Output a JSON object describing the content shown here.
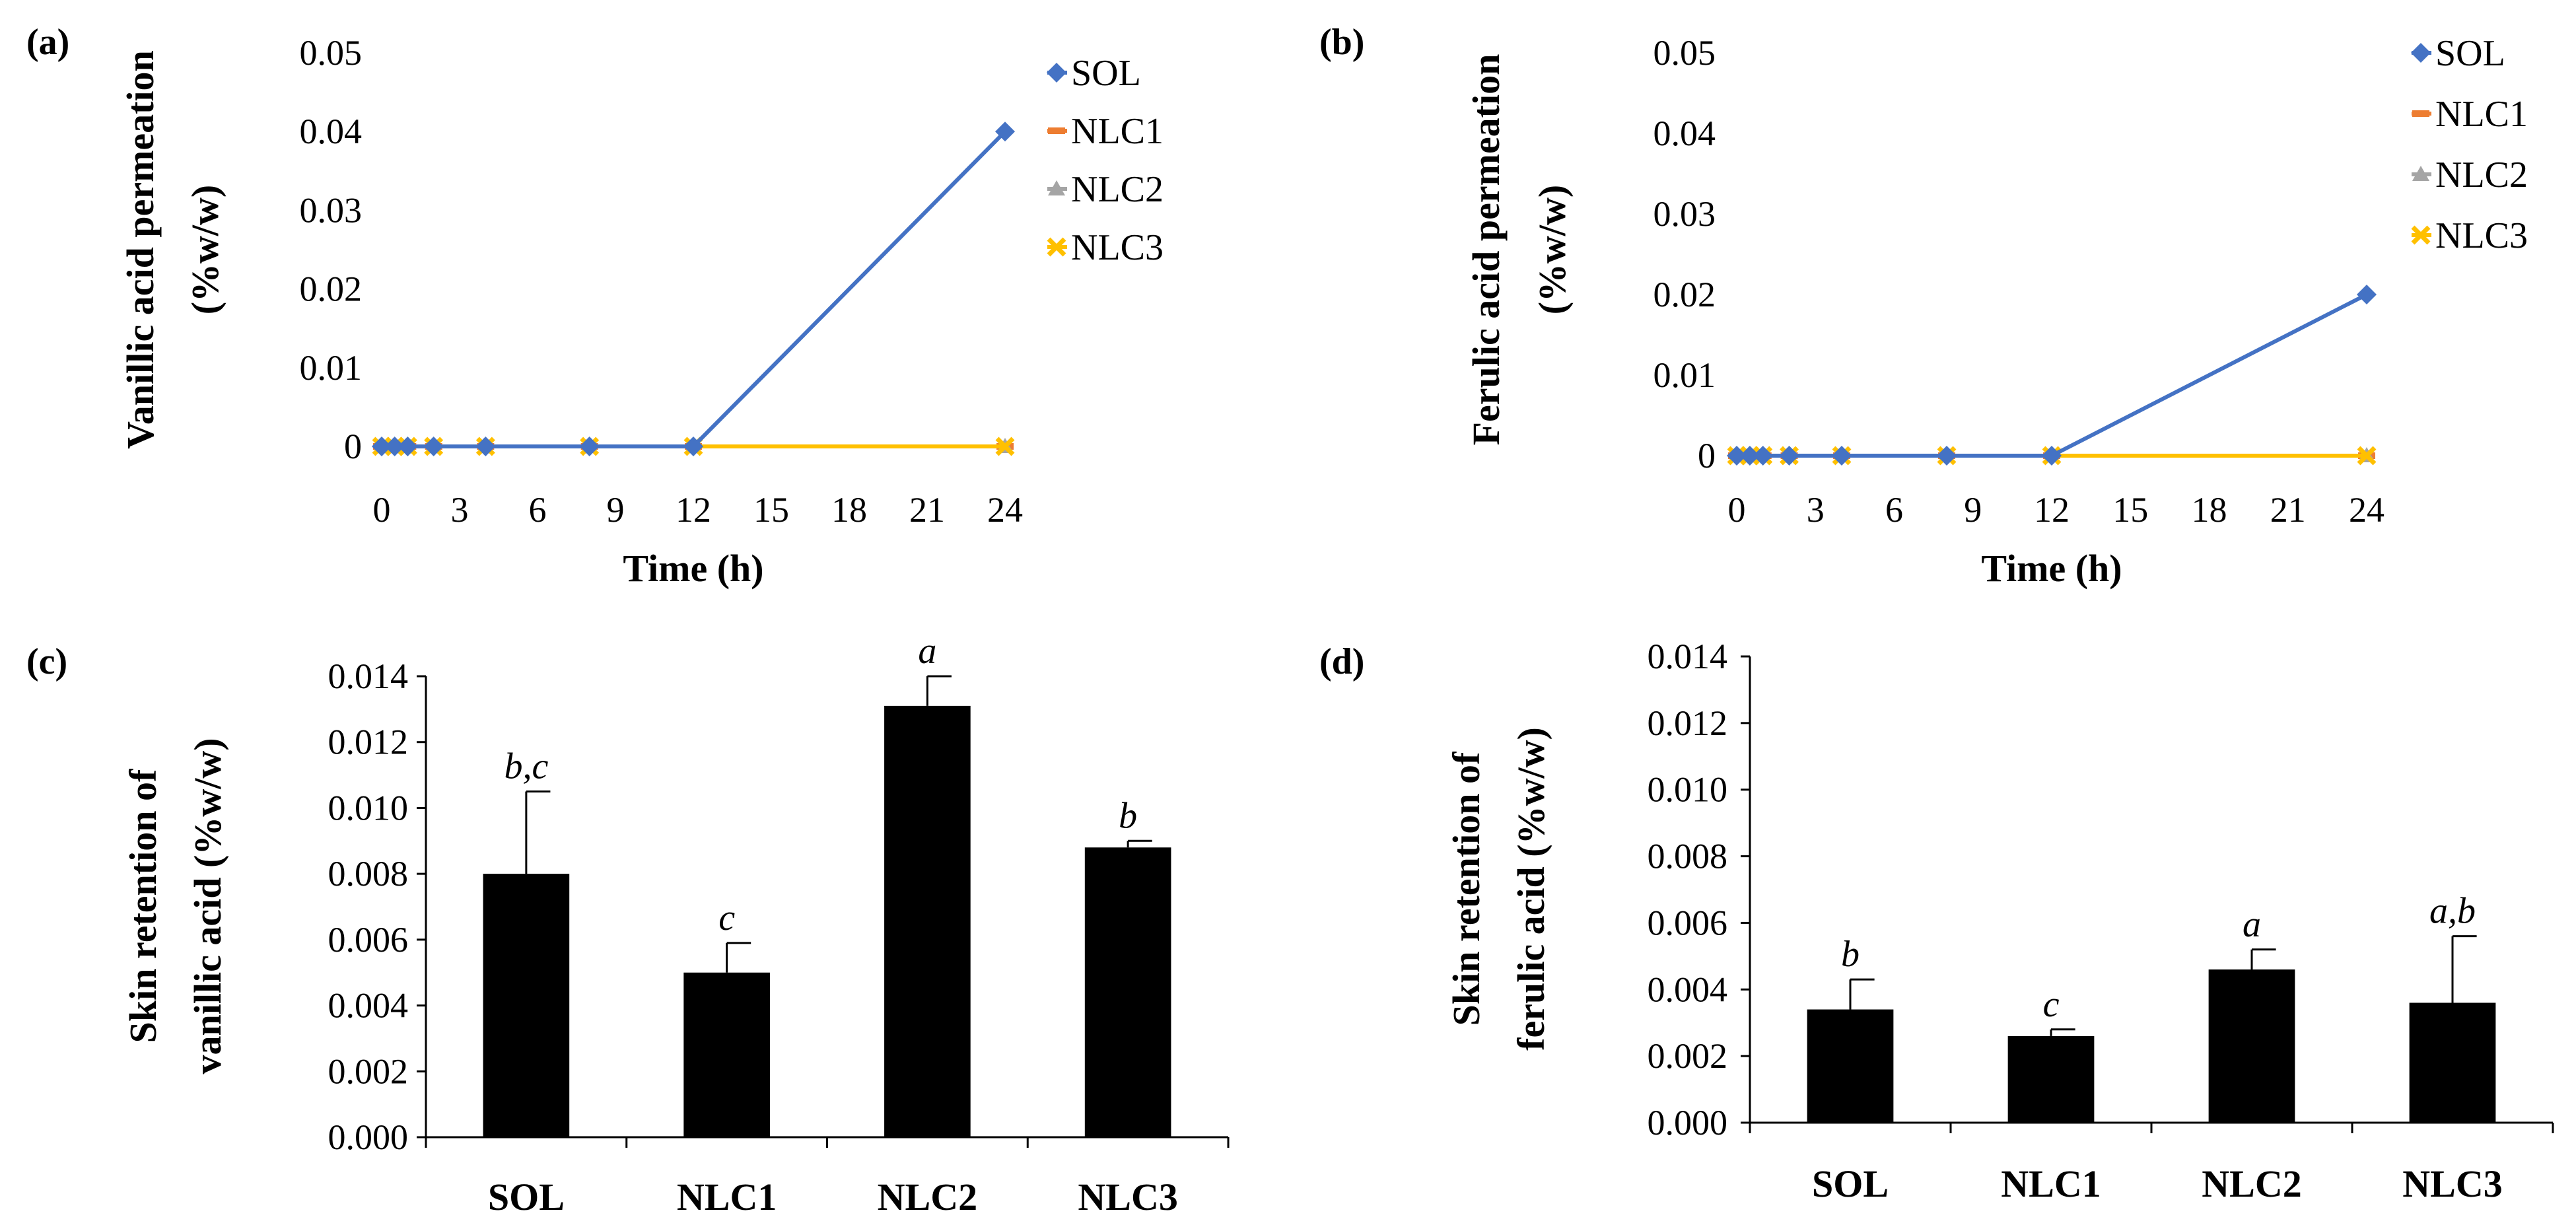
{
  "chart_data": [
    {
      "type": "line",
      "panel_label": "(a)",
      "xlabel": "Time (h)",
      "ylabel": [
        "Vanillic acid permeation",
        "(%w/w)"
      ],
      "x": [
        0,
        0.5,
        1,
        2,
        4,
        8,
        12,
        24
      ],
      "xlim": [
        0,
        24
      ],
      "xticks": [
        "0",
        "3",
        "6",
        "9",
        "12",
        "15",
        "18",
        "21",
        "24"
      ],
      "ylim": [
        0,
        0.05
      ],
      "yticks": [
        "0",
        "0.01",
        "0.02",
        "0.03",
        "0.04",
        "0.05"
      ],
      "legend": "top-right",
      "series": [
        {
          "name": "SOL",
          "color": "#4472C4",
          "marker": "diamond",
          "values": [
            0,
            0,
            0,
            0,
            0,
            0,
            0,
            0.04
          ]
        },
        {
          "name": "NLC1",
          "color": "#ED7D31",
          "marker": "dash",
          "values": [
            0,
            0,
            0,
            0,
            0,
            0,
            0,
            0
          ]
        },
        {
          "name": "NLC2",
          "color": "#A5A5A5",
          "marker": "triangle",
          "values": [
            0,
            0,
            0,
            0,
            0,
            0,
            0,
            0
          ]
        },
        {
          "name": "NLC3",
          "color": "#FFC000",
          "marker": "cross",
          "values": [
            0,
            0,
            0,
            0,
            0,
            0,
            0,
            0
          ]
        }
      ]
    },
    {
      "type": "line",
      "panel_label": "(b)",
      "xlabel": "Time (h)",
      "ylabel": [
        "Ferulic acid permeation",
        "(%w/w)"
      ],
      "x": [
        0,
        0.5,
        1,
        2,
        4,
        8,
        12,
        24
      ],
      "xlim": [
        0,
        24
      ],
      "xticks": [
        "0",
        "3",
        "6",
        "9",
        "12",
        "15",
        "18",
        "21",
        "24"
      ],
      "ylim": [
        0,
        0.05
      ],
      "yticks": [
        "0",
        "0.01",
        "0.02",
        "0.03",
        "0.04",
        "0.05"
      ],
      "legend": "top-right",
      "series": [
        {
          "name": "SOL",
          "color": "#4472C4",
          "marker": "diamond",
          "values": [
            0,
            0,
            0,
            0,
            0,
            0,
            0,
            0.02
          ]
        },
        {
          "name": "NLC1",
          "color": "#ED7D31",
          "marker": "dash",
          "values": [
            0,
            0,
            0,
            0,
            0,
            0,
            0,
            0
          ]
        },
        {
          "name": "NLC2",
          "color": "#A5A5A5",
          "marker": "triangle",
          "values": [
            0,
            0,
            0,
            0,
            0,
            0,
            0,
            0
          ]
        },
        {
          "name": "NLC3",
          "color": "#FFC000",
          "marker": "cross",
          "values": [
            0,
            0,
            0,
            0,
            0,
            0,
            0,
            0
          ]
        }
      ]
    },
    {
      "type": "bar",
      "panel_label": "(c)",
      "ylabel": [
        "Skin retention of",
        "vanillic acid (%w/w)"
      ],
      "categories": [
        "SOL",
        "NLC1",
        "NLC2",
        "NLC3"
      ],
      "values": [
        0.008,
        0.005,
        0.0131,
        0.0088
      ],
      "errors": [
        0.0025,
        0.0009,
        0.0009,
        0.0002
      ],
      "significance": [
        "b,c",
        "c",
        "a",
        "b"
      ],
      "ylim": [
        0,
        0.014
      ],
      "yticks": [
        "0.000",
        "0.002",
        "0.004",
        "0.006",
        "0.008",
        "0.010",
        "0.012",
        "0.014"
      ],
      "bar_color": "#000000"
    },
    {
      "type": "bar",
      "panel_label": "(d)",
      "ylabel": [
        "Skin retention of",
        "ferulic acid  (%w/w)"
      ],
      "categories": [
        "SOL",
        "NLC1",
        "NLC2",
        "NLC3"
      ],
      "values": [
        0.0034,
        0.0026,
        0.0046,
        0.0036
      ],
      "errors": [
        0.0009,
        0.0002,
        0.0006,
        0.002
      ],
      "significance": [
        "b",
        "c",
        "a",
        "a,b"
      ],
      "ylim": [
        0,
        0.014
      ],
      "yticks": [
        "0.000",
        "0.002",
        "0.004",
        "0.006",
        "0.008",
        "0.010",
        "0.012",
        "0.014"
      ],
      "bar_color": "#000000"
    }
  ]
}
